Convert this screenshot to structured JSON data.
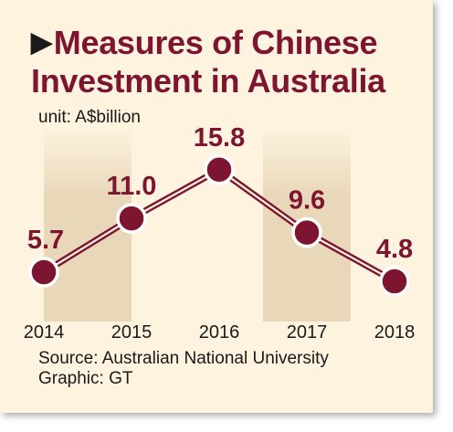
{
  "title_line1": "Measures of Chinese",
  "title_line2": "Investment in Australia",
  "unit": "unit: A$billion",
  "source": "Source: Australian National University",
  "graphic": "Graphic: GT",
  "colors": {
    "accent": "#7d1530",
    "background": "#fdf3df",
    "band": "#e9d7b9"
  },
  "chart_data": {
    "type": "line",
    "categories": [
      "2014",
      "2015",
      "2016",
      "2017",
      "2018"
    ],
    "values": [
      5.7,
      11.0,
      15.8,
      9.6,
      4.8
    ],
    "data_labels": [
      "5.7",
      "11.0",
      "15.8",
      "9.6",
      "4.8"
    ],
    "ylabel": "unit: A$billion",
    "grid": false
  }
}
